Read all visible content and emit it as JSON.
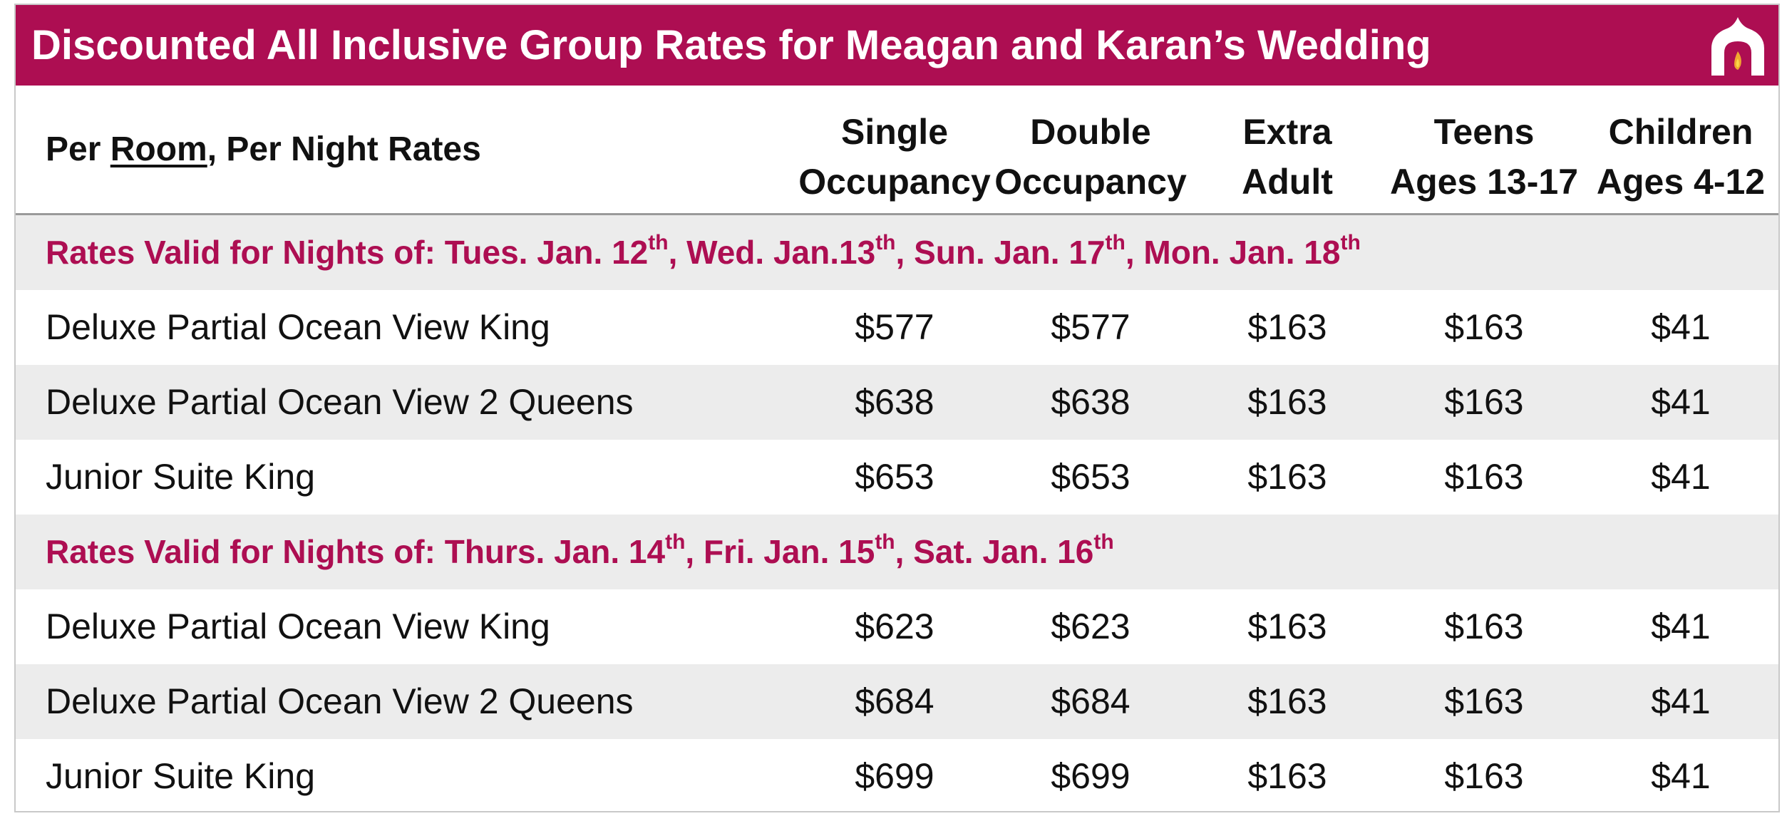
{
  "banner": {
    "title": "Discounted All Inclusive Group Rates for Meagan and Karan’s Wedding",
    "logo_icon": "arch-flame-icon",
    "background_color": "#ad0e52"
  },
  "header": {
    "per_prefix": "Per ",
    "per_room": "Room",
    "per_suffix": ", Per Night Rates",
    "columns": [
      {
        "line1": "Single",
        "line2": "Occupancy"
      },
      {
        "line1": "Double",
        "line2": "Occupancy"
      },
      {
        "line1": "Extra",
        "line2": "Adult"
      },
      {
        "line1": "Teens",
        "line2": "Ages 13-17"
      },
      {
        "line1": "Children",
        "line2": "Ages 4-12"
      }
    ]
  },
  "sections": [
    {
      "heading": {
        "prefix": "Rates Valid for Nights of: ",
        "dates": [
          {
            "text": "Tues. Jan. 12",
            "sup": "th"
          },
          {
            "text": "Wed. Jan.13",
            "sup": "th"
          },
          {
            "text": "Sun. Jan. 17",
            "sup": "th"
          },
          {
            "text": "Mon. Jan. 18",
            "sup": "th"
          }
        ]
      },
      "rows": [
        {
          "room": "Deluxe Partial Ocean View King",
          "prices": [
            "$577",
            "$577",
            "$163",
            "$163",
            "$41"
          ]
        },
        {
          "room": "Deluxe Partial Ocean View 2 Queens",
          "prices": [
            "$638",
            "$638",
            "$163",
            "$163",
            "$41"
          ]
        },
        {
          "room": "Junior Suite King",
          "prices": [
            "$653",
            "$653",
            "$163",
            "$163",
            "$41"
          ]
        }
      ]
    },
    {
      "heading": {
        "prefix": "Rates Valid for Nights of: ",
        "dates": [
          {
            "text": "Thurs. Jan. 14",
            "sup": "th"
          },
          {
            "text": "Fri. Jan. 15",
            "sup": "th"
          },
          {
            "text": "Sat. Jan. 16",
            "sup": "th"
          }
        ]
      },
      "rows": [
        {
          "room": "Deluxe Partial Ocean View King",
          "prices": [
            "$623",
            "$623",
            "$163",
            "$163",
            "$41"
          ]
        },
        {
          "room": "Deluxe Partial Ocean View 2 Queens",
          "prices": [
            "$684",
            "$684",
            "$163",
            "$163",
            "$41"
          ]
        },
        {
          "room": "Junior Suite King",
          "prices": [
            "$699",
            "$699",
            "$163",
            "$163",
            "$41"
          ]
        }
      ]
    }
  ],
  "colors": {
    "accent": "#ad0e52",
    "row_gray": "#ececec",
    "text": "#111111"
  }
}
